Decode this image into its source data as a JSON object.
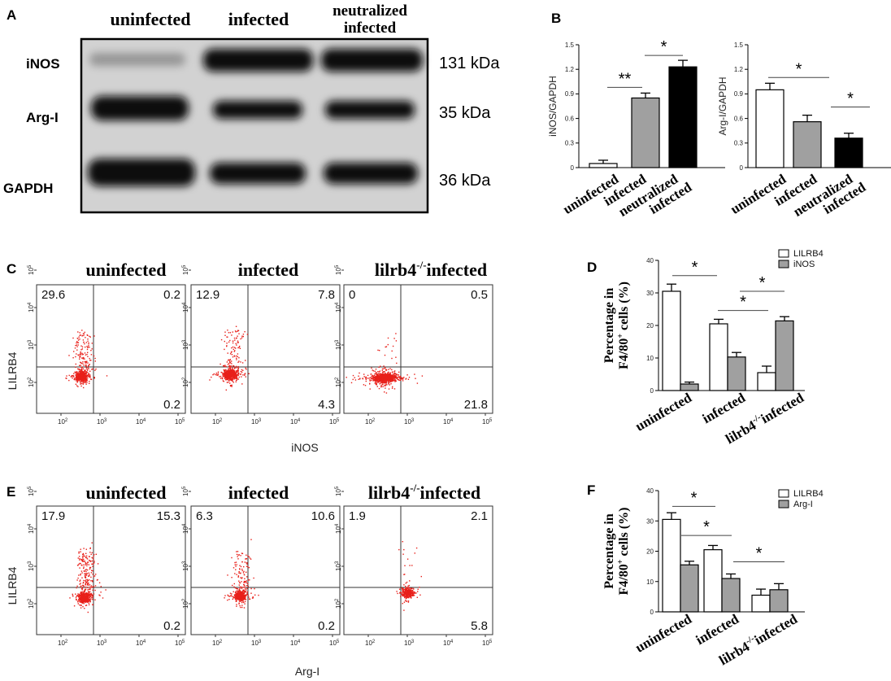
{
  "panel_labels": {
    "a": "A",
    "b": "B",
    "c": "C",
    "d": "D",
    "e": "E",
    "f": "F"
  },
  "panelA": {
    "columns": [
      "uninfected",
      "infected",
      "neutralized",
      "infected"
    ],
    "rows": [
      "iNOS",
      "Arg-I",
      "GAPDH"
    ],
    "sizes": [
      "131 kDa",
      "35 kDa",
      "36 kDa"
    ]
  },
  "colors": {
    "infected": "#a0a0a0",
    "neutralized": "#000000",
    "uninfected": "#ffffff",
    "dots": "#e8201a"
  },
  "flowC": {
    "titles": [
      "uninfected",
      "infected",
      "lilrb4",
      "-/-",
      "infected"
    ],
    "quads": [
      [
        "29.6",
        "0.2",
        "0.2"
      ],
      [
        "12.9",
        "7.8",
        "4.3"
      ],
      [
        "0",
        "0.5",
        "21.8"
      ]
    ],
    "ylabel": "LILRB4",
    "xlabel": "iNOS"
  },
  "flowE": {
    "titles": [
      "uninfected",
      "infected",
      "lilrb4",
      "-/-",
      "infected"
    ],
    "quads": [
      [
        "17.9",
        "15.3",
        "0.2"
      ],
      [
        "6.3",
        "10.6",
        "0.2"
      ],
      [
        "1.9",
        "2.1",
        "5.8"
      ]
    ],
    "ylabel": "LILRB4",
    "xlabel": "Arg-I"
  },
  "flow_ticks": {
    "x": [
      "10",
      "10",
      "10",
      "10"
    ],
    "xexp": [
      "2",
      "3",
      "4",
      "5"
    ],
    "y": [
      "10",
      "10",
      "10",
      "10"
    ],
    "yexp": [
      "2",
      "3",
      "4",
      "5"
    ]
  },
  "chart_data": [
    {
      "id": "B-left",
      "type": "bar",
      "categories": [
        "uninfected",
        "infected",
        "neutralized infected"
      ],
      "values": [
        0.05,
        0.85,
        1.23
      ],
      "errors": [
        0.04,
        0.06,
        0.08
      ],
      "ylabel": "iNOS/GAPDH",
      "ylim": [
        0,
        1.5
      ],
      "yticks": [
        "0",
        "0.3",
        "0.6",
        "0.9",
        "1.2",
        "1.5"
      ],
      "significance": [
        "**",
        "*"
      ]
    },
    {
      "id": "B-right",
      "type": "bar",
      "categories": [
        "uninfected",
        "infected",
        "neutralized infected"
      ],
      "values": [
        0.95,
        0.56,
        0.36
      ],
      "errors": [
        0.08,
        0.08,
        0.06
      ],
      "ylabel": "Arg-I/GAPDH",
      "ylim": [
        0,
        1.5
      ],
      "yticks": [
        "0",
        "0.3",
        "0.6",
        "0.9",
        "1.2",
        "1.5"
      ],
      "significance": [
        "*",
        "*"
      ]
    },
    {
      "id": "D",
      "type": "bar",
      "categories": [
        "uninfected",
        "infected",
        "lilrb4-/-infected"
      ],
      "series": [
        {
          "name": "LILRB4",
          "values": [
            30.5,
            20.5,
            5.5
          ],
          "errors": [
            2.2,
            1.4,
            2.0
          ]
        },
        {
          "name": "iNOS",
          "values": [
            2,
            10.3,
            21.4
          ],
          "errors": [
            0.6,
            1.4,
            1.3
          ]
        }
      ],
      "ylabel": "Percentage in F4/80+ cells (%)",
      "ylim": [
        0,
        40
      ],
      "yticks": [
        "0",
        "10",
        "20",
        "30",
        "40"
      ],
      "significance": [
        "*",
        "*",
        "*"
      ]
    },
    {
      "id": "F",
      "type": "bar",
      "categories": [
        "uninfected",
        "infected",
        "lilrb4-/-infected"
      ],
      "series": [
        {
          "name": "LILRB4",
          "values": [
            30.5,
            20.5,
            5.5
          ],
          "errors": [
            2.2,
            1.4,
            2.0
          ]
        },
        {
          "name": "Arg-I",
          "values": [
            15.5,
            11,
            7.3
          ],
          "errors": [
            1.2,
            1.5,
            2.0
          ]
        }
      ],
      "ylabel": "Percentage in F4/80+ cells (%)",
      "ylim": [
        0,
        40
      ],
      "yticks": [
        "0",
        "10",
        "20",
        "30",
        "40"
      ],
      "significance": [
        "*",
        "*",
        "*"
      ]
    }
  ],
  "ylabel_parts": {
    "line1": "Percentage in",
    "line2a": "F4/80",
    "plus": "+",
    "line2b": " cells (%)"
  },
  "cat_b": {
    "uninf": "uninfected",
    "inf": "infected",
    "neut1": "neutralized",
    "neut2": "infected"
  },
  "cat_d": {
    "uninf": "uninfected",
    "inf": "infected",
    "ko": "lilrb4",
    "ko_sup": "-/-",
    "ko2": "infected"
  }
}
